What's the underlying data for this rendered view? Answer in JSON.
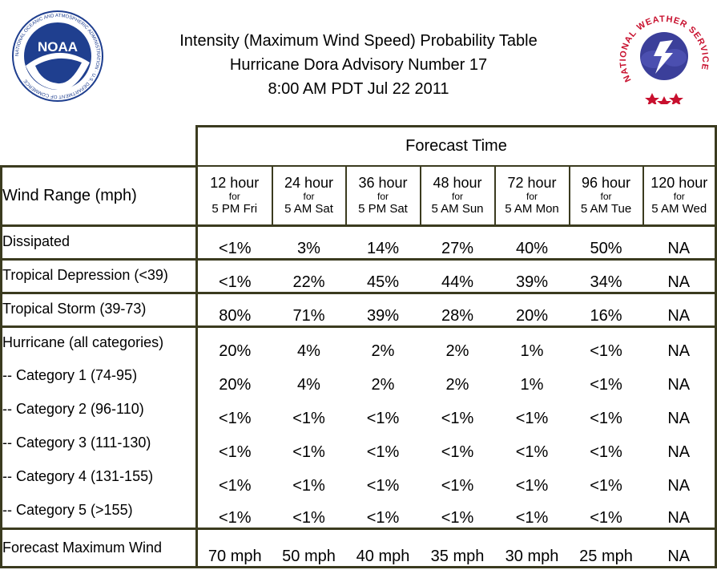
{
  "header": {
    "line1": "Intensity (Maximum Wind Speed) Probability Table",
    "line2": "Hurricane Dora Advisory Number 17",
    "line3": "8:00 AM PDT Jul 22 2011"
  },
  "logos": {
    "noaa": {
      "text": "NOAA",
      "ring": "NATIONAL OCEANIC AND ATMOSPHERIC ADMINISTRATION · U.S. DEPARTMENT OF COMMERCE"
    },
    "nws": {
      "ring": "NATIONAL WEATHER SERVICE"
    }
  },
  "table": {
    "forecast_time_label": "Forecast Time",
    "wind_range_label": "Wind Range (mph)",
    "columns": [
      {
        "hour": "12 hour",
        "for": "for",
        "when": "5 PM Fri"
      },
      {
        "hour": "24 hour",
        "for": "for",
        "when": "5 AM Sat"
      },
      {
        "hour": "36 hour",
        "for": "for",
        "when": "5 PM Sat"
      },
      {
        "hour": "48 hour",
        "for": "for",
        "when": "5 AM Sun"
      },
      {
        "hour": "72 hour",
        "for": "for",
        "when": "5 AM Mon"
      },
      {
        "hour": "96 hour",
        "for": "for",
        "when": "5 AM Tue"
      },
      {
        "hour": "120 hour",
        "for": "for",
        "when": "5 AM Wed"
      }
    ],
    "rows": [
      {
        "label": "Dissipated",
        "values": [
          "<1%",
          "3%",
          "14%",
          "27%",
          "40%",
          "50%",
          "NA"
        ]
      },
      {
        "label": "Tropical Depression (<39)",
        "values": [
          "<1%",
          "22%",
          "45%",
          "44%",
          "39%",
          "34%",
          "NA"
        ]
      },
      {
        "label": "Tropical Storm (39-73)",
        "values": [
          "80%",
          "71%",
          "39%",
          "28%",
          "20%",
          "16%",
          "NA"
        ]
      },
      {
        "label": "Hurricane (all categories)",
        "values": [
          "20%",
          "4%",
          "2%",
          "2%",
          "1%",
          "<1%",
          "NA"
        ]
      },
      {
        "label": "-- Category 1 (74-95)",
        "values": [
          "20%",
          "4%",
          "2%",
          "2%",
          "1%",
          "<1%",
          "NA"
        ]
      },
      {
        "label": "-- Category 2 (96-110)",
        "values": [
          "<1%",
          "<1%",
          "<1%",
          "<1%",
          "<1%",
          "<1%",
          "NA"
        ]
      },
      {
        "label": "-- Category 3 (111-130)",
        "values": [
          "<1%",
          "<1%",
          "<1%",
          "<1%",
          "<1%",
          "<1%",
          "NA"
        ]
      },
      {
        "label": "-- Category 4 (131-155)",
        "values": [
          "<1%",
          "<1%",
          "<1%",
          "<1%",
          "<1%",
          "<1%",
          "NA"
        ]
      },
      {
        "label": "-- Category 5 (>155)",
        "values": [
          "<1%",
          "<1%",
          "<1%",
          "<1%",
          "<1%",
          "<1%",
          "NA"
        ]
      },
      {
        "label": "Forecast Maximum Wind",
        "values": [
          "70 mph",
          "50 mph",
          "40 mph",
          "35 mph",
          "30 mph",
          "25 mph",
          "NA"
        ]
      }
    ]
  },
  "colors": {
    "border": "#3b3b1f",
    "noaa_blue": "#1f3f8f",
    "nws_red": "#c8102e"
  }
}
